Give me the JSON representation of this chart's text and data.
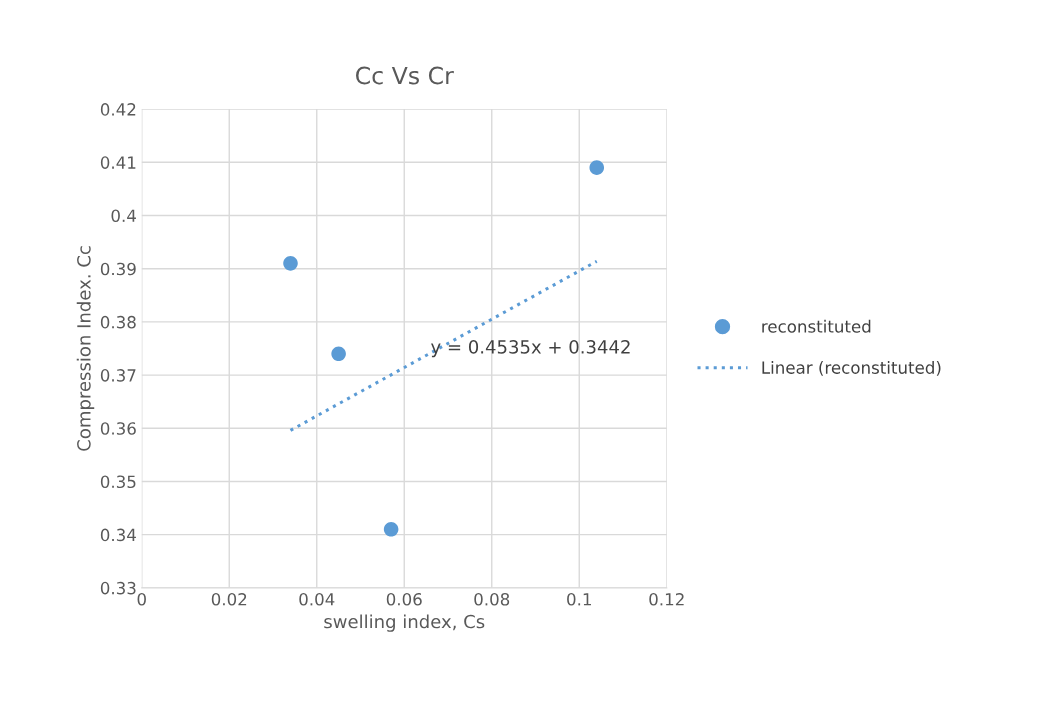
{
  "chart_data": {
    "type": "scatter",
    "title": "Cc Vs Cr",
    "xlabel": "swelling index, Cs",
    "ylabel": "Compression Index. Cc",
    "series": [
      {
        "name": "reconstituted",
        "color": "#5b9bd5",
        "marker": "circle",
        "x": [
          0.034,
          0.045,
          0.057,
          0.104
        ],
        "values": [
          0.391,
          0.374,
          0.341,
          0.409
        ]
      },
      {
        "name": "Linear (reconstituted)",
        "type": "line",
        "color": "#5b9bd5",
        "line_style": "dotted",
        "x": [
          0.034,
          0.104
        ],
        "values": [
          0.3596,
          0.3914
        ]
      }
    ],
    "annotations": [
      {
        "text": "y = 0.4535x + 0.3442",
        "x": 0.066,
        "y": 0.375
      }
    ],
    "xlim": [
      0,
      0.12
    ],
    "xticks": [
      0,
      0.02,
      0.04,
      0.06,
      0.08,
      0.1,
      0.12
    ],
    "ylim": [
      0.33,
      0.42
    ],
    "yticks": [
      0.33,
      0.34,
      0.35,
      0.36,
      0.37,
      0.38,
      0.39,
      0.4,
      0.41,
      0.42
    ],
    "grid": true,
    "legend": "right"
  }
}
